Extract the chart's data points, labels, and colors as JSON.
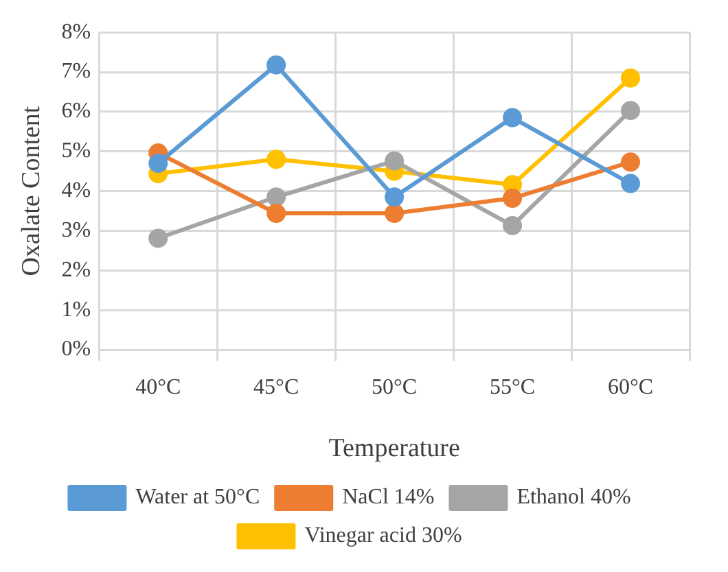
{
  "chart_data": {
    "type": "line",
    "xlabel": "Temperature",
    "ylabel": "Oxalate Content",
    "categories": [
      "40°C",
      "45°C",
      "50°C",
      "55°C",
      "60°C"
    ],
    "series": [
      {
        "name": "Water at 50°C",
        "color": "#5b9bd5",
        "values": [
          4.7,
          7.18,
          3.85,
          5.85,
          4.19
        ]
      },
      {
        "name": "NaCl 14%",
        "color": "#ed7d31",
        "values": [
          4.96,
          3.44,
          3.44,
          3.82,
          4.73
        ]
      },
      {
        "name": "Ethanol 40%",
        "color": "#a5a5a5",
        "values": [
          2.81,
          3.85,
          4.76,
          3.13,
          6.03
        ]
      },
      {
        "name": "Vinegar acid 30%",
        "color": "#ffc000",
        "values": [
          4.44,
          4.8,
          4.5,
          4.16,
          6.85
        ]
      }
    ],
    "ylim": [
      0,
      8
    ],
    "yticks": [
      {
        "value": 0,
        "label": "0%"
      },
      {
        "value": 1,
        "label": "1%"
      },
      {
        "value": 2,
        "label": "2%"
      },
      {
        "value": 3,
        "label": "3%"
      },
      {
        "value": 4,
        "label": "4%"
      },
      {
        "value": 5,
        "label": "5%"
      },
      {
        "value": 6,
        "label": "6%"
      },
      {
        "value": 7,
        "label": "7%"
      },
      {
        "value": 8,
        "label": "8%"
      }
    ],
    "grid": true,
    "legend": "bottom",
    "marker": "circle",
    "line_style": "solid"
  }
}
